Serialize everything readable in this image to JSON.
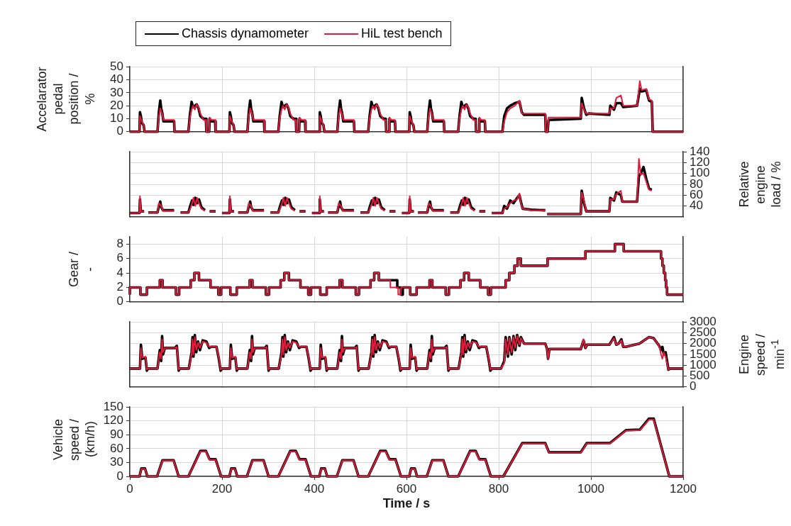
{
  "chart_data": [
    {
      "type": "line",
      "ylabel": "Accelarator pedal position / %",
      "legend": "top",
      "grid": true,
      "marker": "none",
      "tick_labels": "y",
      "xlim": [
        0,
        1200
      ],
      "xticks": [
        {
          "value": 0,
          "label": null
        },
        {
          "value": 200,
          "label": null
        },
        {
          "value": 400,
          "label": null
        },
        {
          "value": 600,
          "label": null
        },
        {
          "value": 800,
          "label": null
        },
        {
          "value": 1000,
          "label": null
        },
        {
          "value": 1200,
          "label": null
        }
      ],
      "ylim": [
        0,
        50
      ],
      "yticks": [
        0,
        10,
        20,
        30,
        40,
        50
      ],
      "x": [
        0,
        10,
        21,
        22,
        24,
        26,
        30,
        32,
        60,
        63,
        66,
        68,
        70,
        73,
        96,
        97,
        127,
        130,
        134,
        137,
        141,
        145,
        149,
        153,
        160,
        165,
        166,
        172,
        173,
        177,
        185,
        186,
        205,
        216,
        217,
        219,
        221,
        225,
        227,
        255,
        258,
        261,
        263,
        265,
        268,
        291,
        292,
        322,
        325,
        329,
        332,
        336,
        340,
        344,
        348,
        355,
        360,
        361,
        367,
        368,
        372,
        380,
        381,
        400,
        411,
        412,
        414,
        416,
        420,
        422,
        450,
        453,
        456,
        458,
        460,
        463,
        486,
        487,
        517,
        520,
        524,
        527,
        531,
        535,
        539,
        543,
        550,
        555,
        556,
        562,
        563,
        567,
        575,
        576,
        595,
        606,
        607,
        609,
        611,
        615,
        617,
        645,
        648,
        651,
        653,
        655,
        658,
        681,
        682,
        712,
        715,
        719,
        722,
        726,
        730,
        734,
        738,
        745,
        750,
        751,
        757,
        758,
        762,
        770,
        771,
        808,
        812,
        818,
        825,
        835,
        845,
        850,
        855,
        901,
        902,
        906,
        908,
        978,
        980,
        985,
        990,
        995,
        1040,
        1042,
        1050,
        1055,
        1065,
        1070,
        1100,
        1106,
        1110,
        1120,
        1126,
        1132,
        1134,
        1200
      ],
      "series": [
        {
          "name": "Chassis dynamometer",
          "color": "#000000",
          "values": [
            0,
            0,
            0,
            15,
            12,
            7,
            5,
            0,
            0,
            15,
            24,
            18,
            15,
            8,
            8,
            0,
            0,
            12,
            23,
            19,
            20,
            21,
            18,
            12,
            10,
            10,
            0,
            0,
            10,
            8,
            8,
            0,
            0,
            0,
            15,
            12,
            7,
            5,
            0,
            0,
            15,
            24,
            18,
            15,
            8,
            8,
            0,
            0,
            12,
            23,
            19,
            20,
            21,
            18,
            12,
            10,
            10,
            0,
            0,
            10,
            8,
            8,
            0,
            0,
            0,
            15,
            12,
            7,
            5,
            0,
            0,
            15,
            24,
            18,
            15,
            8,
            8,
            0,
            0,
            12,
            23,
            19,
            20,
            21,
            18,
            12,
            10,
            10,
            0,
            0,
            10,
            8,
            8,
            0,
            0,
            0,
            15,
            12,
            7,
            5,
            0,
            0,
            15,
            24,
            18,
            15,
            8,
            8,
            0,
            0,
            12,
            23,
            19,
            20,
            21,
            18,
            12,
            10,
            10,
            0,
            0,
            10,
            8,
            8,
            0,
            0,
            12,
            18,
            20,
            22,
            23,
            15,
            13,
            13,
            0,
            0,
            9,
            10,
            26,
            18,
            13,
            14,
            13,
            20,
            17,
            22,
            22,
            19,
            20,
            33,
            31,
            32,
            24,
            23,
            0,
            0
          ]
        },
        {
          "name": "HiL test bench",
          "color": "#e6193c",
          "values": [
            0,
            0,
            0,
            12,
            10,
            8,
            5,
            0,
            0,
            12,
            18,
            16,
            14,
            9,
            9,
            0,
            0,
            10,
            17,
            20,
            17,
            21,
            19,
            14,
            9,
            9,
            0,
            0,
            11,
            9,
            9,
            0,
            0,
            0,
            12,
            10,
            8,
            5,
            0,
            0,
            12,
            18,
            16,
            14,
            9,
            9,
            0,
            0,
            10,
            17,
            20,
            17,
            21,
            19,
            14,
            9,
            9,
            0,
            0,
            11,
            9,
            9,
            0,
            0,
            0,
            12,
            10,
            8,
            5,
            0,
            0,
            12,
            18,
            16,
            14,
            9,
            9,
            0,
            0,
            10,
            17,
            20,
            17,
            21,
            19,
            14,
            9,
            9,
            0,
            0,
            11,
            9,
            9,
            0,
            0,
            0,
            12,
            10,
            8,
            5,
            0,
            0,
            12,
            18,
            16,
            14,
            9,
            9,
            0,
            0,
            10,
            17,
            20,
            17,
            21,
            19,
            14,
            9,
            9,
            0,
            0,
            11,
            9,
            9,
            0,
            0,
            8,
            15,
            18,
            20,
            24,
            14,
            14,
            14,
            0,
            0,
            11,
            11,
            22,
            17,
            14,
            14,
            14,
            18,
            18,
            26,
            28,
            20,
            20,
            39,
            32,
            33,
            25,
            24,
            0,
            0
          ]
        }
      ]
    },
    {
      "type": "line",
      "ylabel": "Relative engine load / %",
      "grid": true,
      "marker": "none",
      "tick_labels": "y",
      "xlim": [
        0,
        1200
      ],
      "xticks": [
        {
          "value": 0,
          "label": null
        },
        {
          "value": 200,
          "label": null
        },
        {
          "value": 400,
          "label": null
        },
        {
          "value": 600,
          "label": null
        },
        {
          "value": 800,
          "label": null
        },
        {
          "value": 1000,
          "label": null
        },
        {
          "value": 1200,
          "label": null
        }
      ],
      "ylim": [
        20,
        140
      ],
      "yticks": [
        40,
        60,
        80,
        100,
        120,
        140
      ],
      "x": [
        0,
        10,
        21,
        22,
        24,
        31,
        33,
        40,
        60,
        63,
        66,
        68,
        72,
        96,
        98,
        110,
        127,
        131,
        135,
        138,
        142,
        146,
        150,
        155,
        163,
        165,
        173,
        186,
        188,
        200,
        205,
        216,
        217,
        219,
        226,
        228,
        235,
        255,
        258,
        261,
        263,
        267,
        291,
        293,
        305,
        322,
        326,
        330,
        333,
        337,
        341,
        345,
        350,
        358,
        360,
        368,
        381,
        383,
        395,
        400,
        411,
        412,
        414,
        421,
        423,
        430,
        450,
        453,
        456,
        458,
        462,
        486,
        488,
        500,
        517,
        521,
        525,
        528,
        532,
        536,
        540,
        545,
        553,
        555,
        563,
        576,
        578,
        590,
        595,
        606,
        607,
        609,
        616,
        618,
        625,
        645,
        648,
        651,
        653,
        657,
        681,
        683,
        695,
        712,
        716,
        720,
        723,
        727,
        731,
        735,
        740,
        748,
        750,
        758,
        771,
        773,
        785,
        808,
        812,
        818,
        825,
        832,
        840,
        845,
        848,
        852,
        870,
        901,
        902,
        905,
        978,
        980,
        985,
        990,
        1040,
        1042,
        1050,
        1055,
        1065,
        1068,
        1100,
        1104,
        1108,
        1114,
        1120,
        1126,
        1132
      ],
      "series": [
        {
          "color": "#000000",
          "values": [
            27,
            27,
            27,
            52,
            30,
            30,
            null,
            28,
            28,
            40,
            48,
            38,
            32,
            32,
            null,
            28,
            28,
            40,
            50,
            42,
            55,
            45,
            52,
            38,
            32,
            null,
            30,
            30,
            null,
            27,
            27,
            27,
            52,
            30,
            30,
            null,
            28,
            28,
            40,
            48,
            38,
            32,
            32,
            null,
            28,
            28,
            40,
            50,
            42,
            55,
            45,
            52,
            38,
            32,
            null,
            30,
            30,
            null,
            27,
            27,
            27,
            52,
            30,
            30,
            null,
            28,
            28,
            40,
            48,
            38,
            32,
            32,
            null,
            28,
            28,
            40,
            50,
            42,
            55,
            45,
            52,
            38,
            32,
            null,
            30,
            30,
            null,
            27,
            27,
            27,
            52,
            30,
            30,
            null,
            28,
            28,
            40,
            48,
            38,
            32,
            32,
            null,
            28,
            28,
            40,
            50,
            42,
            55,
            45,
            52,
            38,
            32,
            null,
            30,
            30,
            null,
            27,
            27,
            40,
            35,
            50,
            45,
            55,
            60,
            48,
            35,
            33,
            32,
            null,
            25,
            25,
            68,
            45,
            30,
            30,
            55,
            50,
            65,
            60,
            48,
            48,
            95,
            100,
            112,
            90,
            72,
            70
          ]
        },
        {
          "color": "#e6193c",
          "values": [
            27,
            27,
            27,
            58,
            30,
            30,
            null,
            28,
            28,
            45,
            42,
            40,
            31,
            31,
            null,
            28,
            28,
            35,
            45,
            55,
            40,
            55,
            45,
            35,
            31,
            null,
            30,
            30,
            null,
            27,
            27,
            27,
            58,
            30,
            30,
            null,
            28,
            28,
            45,
            42,
            40,
            31,
            31,
            null,
            28,
            28,
            35,
            45,
            55,
            40,
            55,
            45,
            35,
            31,
            null,
            30,
            30,
            null,
            27,
            27,
            27,
            58,
            30,
            30,
            null,
            28,
            28,
            45,
            42,
            40,
            31,
            31,
            null,
            28,
            28,
            35,
            45,
            55,
            40,
            55,
            45,
            35,
            31,
            null,
            30,
            30,
            null,
            27,
            27,
            27,
            58,
            30,
            30,
            null,
            28,
            28,
            45,
            42,
            40,
            31,
            31,
            null,
            28,
            28,
            35,
            45,
            55,
            40,
            55,
            45,
            35,
            31,
            null,
            30,
            30,
            null,
            27,
            27,
            35,
            38,
            45,
            50,
            52,
            63,
            45,
            35,
            32,
            32,
            null,
            25,
            25,
            65,
            50,
            30,
            30,
            52,
            52,
            62,
            68,
            48,
            48,
            127,
            98,
            100,
            85,
            70,
            68
          ]
        }
      ]
    },
    {
      "type": "step",
      "ylabel": "Gear / -",
      "grid": true,
      "marker": "none",
      "tick_labels": "y",
      "xlim": [
        0,
        1200
      ],
      "xticks": [
        {
          "value": 0,
          "label": null
        },
        {
          "value": 200,
          "label": null
        },
        {
          "value": 400,
          "label": null
        },
        {
          "value": 600,
          "label": null
        },
        {
          "value": 800,
          "label": null
        },
        {
          "value": 1000,
          "label": null
        },
        {
          "value": 1200,
          "label": null
        }
      ],
      "ylim": [
        0,
        9
      ],
      "yticks": [
        0,
        2,
        4,
        6,
        8
      ],
      "series": [
        {
          "color": "#000000",
          "x": [
            0,
            23,
            37,
            65,
            71,
            100,
            107,
            132,
            140,
            150,
            175,
            192,
            198,
            218,
            232,
            260,
            266,
            295,
            302,
            327,
            335,
            345,
            370,
            387,
            393,
            413,
            427,
            455,
            461,
            490,
            497,
            522,
            530,
            540,
            580,
            588,
            592,
            608,
            622,
            650,
            656,
            685,
            692,
            717,
            725,
            735,
            760,
            777,
            783,
            815,
            823,
            834,
            841,
            848,
            906,
            988,
            1052,
            1071,
            1152,
            1155,
            1158,
            1161,
            1163,
            1165,
            1168,
            1200
          ],
          "values": [
            1,
            2,
            1,
            2,
            3,
            2,
            1,
            2,
            3,
            4,
            3,
            2,
            1,
            2,
            1,
            2,
            3,
            2,
            1,
            2,
            3,
            4,
            3,
            2,
            1,
            2,
            1,
            2,
            3,
            2,
            1,
            2,
            3,
            4,
            3,
            2,
            1,
            2,
            1,
            2,
            3,
            2,
            1,
            2,
            3,
            4,
            3,
            2,
            1,
            2,
            3,
            4,
            5,
            6,
            5,
            6,
            7,
            8,
            7,
            6,
            5,
            4,
            3,
            2,
            1,
            1
          ]
        },
        {
          "color": "#e6193c",
          "x": [
            0,
            23,
            37,
            65,
            71,
            100,
            107,
            132,
            140,
            150,
            175,
            192,
            198,
            218,
            232,
            260,
            266,
            295,
            302,
            327,
            335,
            345,
            370,
            387,
            393,
            413,
            427,
            455,
            461,
            490,
            497,
            522,
            530,
            540,
            565,
            582,
            588,
            608,
            622,
            650,
            656,
            685,
            692,
            717,
            725,
            735,
            760,
            777,
            783,
            815,
            823,
            834,
            841,
            848,
            906,
            988,
            1052,
            1071,
            1152,
            1155,
            1158,
            1161,
            1163,
            1165,
            1168,
            1200
          ],
          "values": [
            1,
            2,
            1,
            2,
            3,
            2,
            1,
            2,
            3,
            4,
            3,
            2,
            1,
            2,
            1,
            2,
            3,
            2,
            1,
            2,
            3,
            4,
            3,
            2,
            1,
            2,
            1,
            2,
            3,
            2,
            1,
            2,
            3,
            4,
            3,
            2,
            1,
            2,
            1,
            2,
            3,
            2,
            1,
            2,
            3,
            4,
            3,
            2,
            1,
            2,
            3,
            4,
            5,
            6,
            5,
            6,
            7,
            8,
            7,
            6,
            5,
            4,
            3,
            2,
            1,
            1
          ]
        }
      ]
    },
    {
      "type": "line",
      "ylabel": "Engine speed / min$^{-1}$",
      "grid": true,
      "marker": "none",
      "tick_labels": "y",
      "xlim": [
        0,
        1200
      ],
      "xticks": [
        {
          "value": 0,
          "label": null
        },
        {
          "value": 200,
          "label": null
        },
        {
          "value": 400,
          "label": null
        },
        {
          "value": 600,
          "label": null
        },
        {
          "value": 800,
          "label": null
        },
        {
          "value": 1000,
          "label": null
        },
        {
          "value": 1200,
          "label": null
        }
      ],
      "ylim": [
        0,
        3000
      ],
      "yticks": [
        0,
        500,
        1000,
        1500,
        2000,
        2500,
        3000
      ],
      "x": [
        0,
        10,
        22,
        24,
        27,
        34,
        37,
        39,
        60,
        65,
        68,
        70,
        72,
        76,
        98,
        102,
        106,
        108,
        128,
        134,
        136,
        138,
        141,
        144,
        148,
        152,
        158,
        166,
        172,
        176,
        188,
        193,
        197,
        200,
        205,
        217,
        219,
        222,
        229,
        232,
        234,
        255,
        260,
        263,
        265,
        267,
        271,
        293,
        297,
        301,
        303,
        323,
        329,
        331,
        333,
        336,
        339,
        343,
        347,
        353,
        361,
        367,
        371,
        383,
        388,
        392,
        395,
        400,
        412,
        414,
        417,
        424,
        427,
        429,
        450,
        455,
        458,
        460,
        462,
        466,
        488,
        492,
        496,
        498,
        518,
        524,
        526,
        528,
        531,
        534,
        538,
        542,
        548,
        556,
        562,
        566,
        578,
        583,
        587,
        590,
        595,
        607,
        609,
        612,
        619,
        622,
        624,
        645,
        650,
        653,
        655,
        657,
        661,
        683,
        687,
        691,
        693,
        713,
        719,
        721,
        723,
        726,
        729,
        733,
        737,
        743,
        751,
        757,
        761,
        773,
        778,
        782,
        785,
        805,
        812,
        815,
        820,
        823,
        828,
        832,
        836,
        840,
        845,
        848,
        855,
        901,
        905,
        907,
        910,
        978,
        984,
        988,
        992,
        1040,
        1050,
        1055,
        1060,
        1066,
        1070,
        1076,
        1085,
        1105,
        1126,
        1136,
        1148,
        1152,
        1155,
        1158,
        1162,
        1168,
        1172,
        1200
      ],
      "series": [
        {
          "color": "#000000",
          "values": [
            850,
            850,
            850,
            1950,
            1300,
            1350,
            750,
            850,
            850,
            1700,
            1200,
            2350,
            1500,
            1800,
            1800,
            1900,
            750,
            850,
            850,
            1600,
            2300,
            1400,
            2400,
            1600,
            2100,
            1700,
            2150,
            2100,
            1800,
            1850,
            1850,
            1300,
            750,
            850,
            850,
            850,
            1950,
            1300,
            1350,
            750,
            850,
            850,
            1700,
            1200,
            2350,
            1500,
            1800,
            1800,
            1900,
            750,
            850,
            850,
            1600,
            2300,
            1400,
            2400,
            1600,
            2100,
            1700,
            2150,
            2100,
            1800,
            1850,
            1850,
            1300,
            750,
            850,
            850,
            850,
            1950,
            1300,
            1350,
            750,
            850,
            850,
            1700,
            1200,
            2350,
            1500,
            1800,
            1800,
            1900,
            750,
            850,
            850,
            1600,
            2300,
            1400,
            2400,
            1600,
            2100,
            1700,
            2150,
            2100,
            1800,
            1850,
            1850,
            1300,
            750,
            850,
            850,
            850,
            1950,
            1300,
            1350,
            750,
            850,
            850,
            1700,
            1200,
            2350,
            1500,
            1800,
            1800,
            1900,
            750,
            850,
            850,
            1600,
            2300,
            1400,
            2400,
            1600,
            2100,
            1700,
            2150,
            2100,
            1800,
            1850,
            1850,
            1300,
            750,
            850,
            850,
            1200,
            2300,
            1400,
            2300,
            1500,
            2350,
            1700,
            2400,
            1900,
            2300,
            2000,
            2000,
            1750,
            1300,
            1750,
            1750,
            2150,
            1800,
            1950,
            1950,
            2300,
            1950,
            2000,
            2200,
            1850,
            1850,
            1900,
            2000,
            2300,
            2250,
            1900,
            1700,
            1850,
            1500,
            1600,
            800,
            850,
            850
          ]
        },
        {
          "color": "#e6193c",
          "values": [
            850,
            850,
            850,
            1800,
            1350,
            1400,
            800,
            850,
            850,
            1600,
            1300,
            2200,
            1600,
            1800,
            1800,
            1850,
            800,
            850,
            850,
            1500,
            2200,
            1500,
            2300,
            1700,
            2050,
            1800,
            2100,
            2050,
            1850,
            1850,
            1850,
            1350,
            800,
            850,
            850,
            850,
            1800,
            1350,
            1400,
            800,
            850,
            850,
            1600,
            1300,
            2200,
            1600,
            1800,
            1800,
            1850,
            800,
            850,
            850,
            1500,
            2200,
            1500,
            2300,
            1700,
            2050,
            1800,
            2100,
            2050,
            1850,
            1850,
            1850,
            1350,
            800,
            850,
            850,
            850,
            1800,
            1350,
            1400,
            800,
            850,
            850,
            1600,
            1300,
            2200,
            1600,
            1800,
            1800,
            1850,
            800,
            850,
            850,
            1500,
            2200,
            1500,
            2300,
            1700,
            2050,
            1800,
            2100,
            2050,
            1850,
            1850,
            1850,
            1350,
            800,
            850,
            850,
            850,
            1800,
            1350,
            1400,
            800,
            850,
            850,
            1600,
            1300,
            2200,
            1600,
            1800,
            1800,
            1850,
            800,
            850,
            850,
            1500,
            2200,
            1500,
            2300,
            1700,
            2050,
            1800,
            2100,
            2050,
            1850,
            1850,
            1850,
            1350,
            800,
            850,
            850,
            1100,
            2200,
            1500,
            2250,
            1600,
            2300,
            1800,
            2350,
            1950,
            2250,
            2000,
            2000,
            1750,
            1300,
            1750,
            1750,
            2200,
            1800,
            1950,
            1950,
            2250,
            1950,
            2000,
            2150,
            1850,
            1850,
            1900,
            2000,
            2300,
            2250,
            1900,
            1500,
            1300,
            1600,
            1400,
            800,
            850,
            850
          ]
        }
      ]
    },
    {
      "type": "line",
      "ylabel": "Vehicle speed / (km/h)",
      "xlabel": "Time / s",
      "grid": true,
      "marker": "none",
      "xlim": [
        0,
        1200
      ],
      "xticks": [
        0,
        200,
        400,
        600,
        800,
        1000,
        1200
      ],
      "ylim": [
        0,
        150
      ],
      "yticks": [
        0,
        30,
        60,
        90,
        120,
        150
      ],
      "x": [
        0,
        21,
        25,
        33,
        38,
        59,
        71,
        95,
        106,
        127,
        153,
        165,
        173,
        186,
        198,
        216,
        220,
        228,
        233,
        254,
        266,
        290,
        301,
        322,
        348,
        360,
        368,
        381,
        393,
        411,
        415,
        423,
        428,
        449,
        461,
        485,
        496,
        517,
        543,
        555,
        563,
        576,
        588,
        606,
        610,
        618,
        623,
        644,
        656,
        680,
        691,
        712,
        738,
        750,
        758,
        771,
        783,
        810,
        851,
        901,
        909,
        978,
        991,
        1041,
        1076,
        1106,
        1126,
        1136,
        1170,
        1200
      ],
      "series": [
        {
          "color": "#000000",
          "values": [
            0,
            0,
            17,
            17,
            0,
            0,
            35,
            35,
            0,
            0,
            55,
            55,
            37,
            37,
            0,
            0,
            17,
            17,
            0,
            0,
            35,
            35,
            0,
            0,
            55,
            55,
            37,
            37,
            0,
            0,
            17,
            17,
            0,
            0,
            35,
            35,
            0,
            0,
            55,
            55,
            37,
            37,
            0,
            0,
            17,
            17,
            0,
            0,
            35,
            35,
            0,
            0,
            55,
            55,
            37,
            37,
            0,
            0,
            72,
            72,
            52,
            52,
            72,
            72,
            100,
            101,
            125,
            125,
            0,
            0
          ]
        },
        {
          "color": "#e6193c",
          "values": [
            0,
            0,
            16,
            16,
            0,
            0,
            34,
            34,
            0,
            0,
            54,
            54,
            36,
            36,
            0,
            0,
            16,
            16,
            0,
            0,
            34,
            34,
            0,
            0,
            54,
            54,
            36,
            36,
            0,
            0,
            16,
            16,
            0,
            0,
            34,
            34,
            0,
            0,
            54,
            54,
            36,
            36,
            0,
            0,
            16,
            16,
            0,
            0,
            34,
            34,
            0,
            0,
            54,
            54,
            36,
            36,
            0,
            0,
            71,
            71,
            51,
            51,
            71,
            71,
            99,
            100,
            123,
            123,
            0,
            0
          ]
        }
      ]
    }
  ]
}
